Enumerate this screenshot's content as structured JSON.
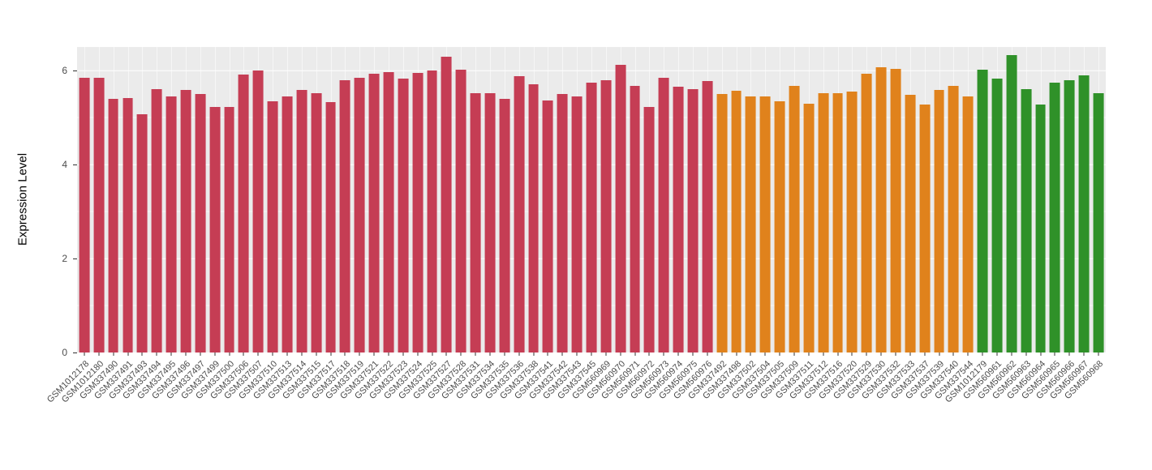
{
  "chart_data": {
    "type": "bar",
    "title": "",
    "xlabel": "",
    "ylabel": "Expression Level",
    "ylim": [
      0,
      6.5
    ],
    "yticks": [
      0,
      2,
      4,
      6
    ],
    "yticks_minor": [
      1,
      3,
      5
    ],
    "panel_bg": "#EBEBEB",
    "grid_color": "#FFFFFF",
    "legend": "none",
    "categories": [
      "GSM1012178",
      "GSM1012180",
      "GSM337490",
      "GSM337491",
      "GSM337493",
      "GSM337494",
      "GSM337495",
      "GSM337496",
      "GSM337497",
      "GSM337499",
      "GSM337500",
      "GSM337506",
      "GSM337507",
      "GSM337510",
      "GSM337513",
      "GSM337514",
      "GSM337515",
      "GSM337517",
      "GSM337518",
      "GSM337519",
      "GSM337521",
      "GSM337522",
      "GSM337523",
      "GSM337524",
      "GSM337525",
      "GSM337527",
      "GSM337528",
      "GSM337531",
      "GSM337534",
      "GSM337535",
      "GSM337536",
      "GSM337538",
      "GSM337541",
      "GSM337542",
      "GSM337543",
      "GSM337545",
      "GSM560969",
      "GSM560970",
      "GSM560971",
      "GSM560972",
      "GSM560973",
      "GSM560974",
      "GSM560975",
      "GSM560976",
      "GSM337492",
      "GSM337498",
      "GSM337502",
      "GSM337504",
      "GSM337505",
      "GSM337509",
      "GSM337511",
      "GSM337512",
      "GSM337516",
      "GSM337520",
      "GSM337529",
      "GSM337530",
      "GSM337532",
      "GSM337533",
      "GSM337537",
      "GSM337539",
      "GSM337540",
      "GSM337544",
      "GSM1012179",
      "GSM560961",
      "GSM560962",
      "GSM560963",
      "GSM560964",
      "GSM560965",
      "GSM560966",
      "GSM560967",
      "GSM560968"
    ],
    "values": [
      5.85,
      5.85,
      5.4,
      5.42,
      5.07,
      5.6,
      5.45,
      5.58,
      5.5,
      5.22,
      5.22,
      5.92,
      6.0,
      5.35,
      5.45,
      5.58,
      5.52,
      5.32,
      5.8,
      5.85,
      5.93,
      5.97,
      5.82,
      5.95,
      6.0,
      6.3,
      6.02,
      5.52,
      5.52,
      5.4,
      5.88,
      5.7,
      5.37,
      5.5,
      5.45,
      5.75,
      5.8,
      6.12,
      5.67,
      5.22,
      5.85,
      5.65,
      5.6,
      5.77,
      5.5,
      5.57,
      5.45,
      5.45,
      5.35,
      5.67,
      5.3,
      5.52,
      5.52,
      5.55,
      5.93,
      6.07,
      6.03,
      5.48,
      5.27,
      5.58,
      5.67,
      5.45,
      6.02,
      5.82,
      6.32,
      5.6,
      5.27,
      5.75,
      5.8,
      5.9,
      5.52
    ],
    "groups": [
      "red",
      "red",
      "red",
      "red",
      "red",
      "red",
      "red",
      "red",
      "red",
      "red",
      "red",
      "red",
      "red",
      "red",
      "red",
      "red",
      "red",
      "red",
      "red",
      "red",
      "red",
      "red",
      "red",
      "red",
      "red",
      "red",
      "red",
      "red",
      "red",
      "red",
      "red",
      "red",
      "red",
      "red",
      "red",
      "red",
      "red",
      "red",
      "red",
      "red",
      "red",
      "red",
      "red",
      "red",
      "orange",
      "orange",
      "orange",
      "orange",
      "orange",
      "orange",
      "orange",
      "orange",
      "orange",
      "orange",
      "orange",
      "orange",
      "orange",
      "orange",
      "orange",
      "orange",
      "orange",
      "orange",
      "green",
      "green",
      "green",
      "green",
      "green",
      "green",
      "green",
      "green",
      "green"
    ],
    "group_colors": {
      "red": "#C53D54",
      "orange": "#E0821C",
      "green": "#2F9129"
    }
  }
}
